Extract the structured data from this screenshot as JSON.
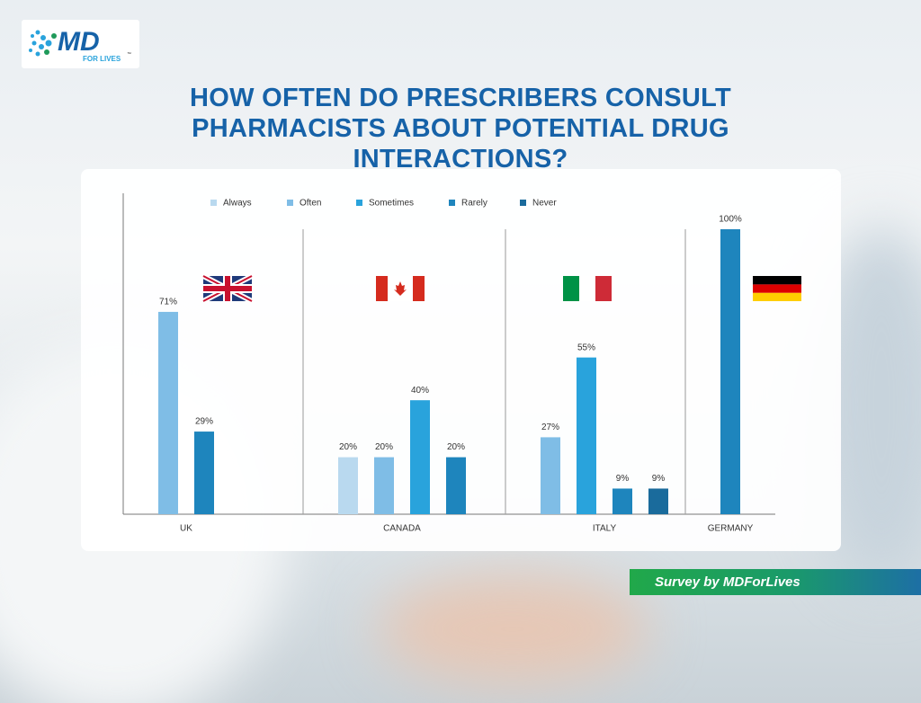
{
  "logo": {
    "text": "MD",
    "subtext": "FOR LIVES",
    "mark": "™"
  },
  "chart_data": {
    "type": "bar",
    "title": "HOW OFTEN DO PRESCRIBERS CONSULT PHARMACISTS ABOUT POTENTIAL DRUG INTERACTIONS?",
    "categories": [
      "UK",
      "CANADA",
      "ITALY",
      "GERMANY"
    ],
    "series": [
      {
        "name": "Always",
        "color": "#b9d9ef",
        "values": [
          null,
          20,
          null,
          null
        ],
        "value_labels": [
          null,
          "20%",
          null,
          null
        ]
      },
      {
        "name": "Often",
        "color": "#7fbde6",
        "values": [
          71,
          20,
          27,
          null
        ],
        "value_labels": [
          "71%",
          "20%",
          "27%",
          null
        ]
      },
      {
        "name": "Sometimes",
        "color": "#29a3dc",
        "values": [
          null,
          40,
          55,
          null
        ],
        "value_labels": [
          null,
          "40%",
          "55%",
          null
        ]
      },
      {
        "name": "Rarely",
        "color": "#1e85bd",
        "values": [
          29,
          20,
          9,
          100
        ],
        "value_labels": [
          "29%",
          "20%",
          "9%",
          "100%"
        ]
      },
      {
        "name": "Never",
        "color": "#1a6b9c",
        "values": [
          null,
          null,
          9,
          null
        ],
        "value_labels": [
          null,
          null,
          "9%",
          null
        ]
      }
    ],
    "ylim": [
      0,
      100
    ]
  },
  "footer": "Survey by MDForLives"
}
